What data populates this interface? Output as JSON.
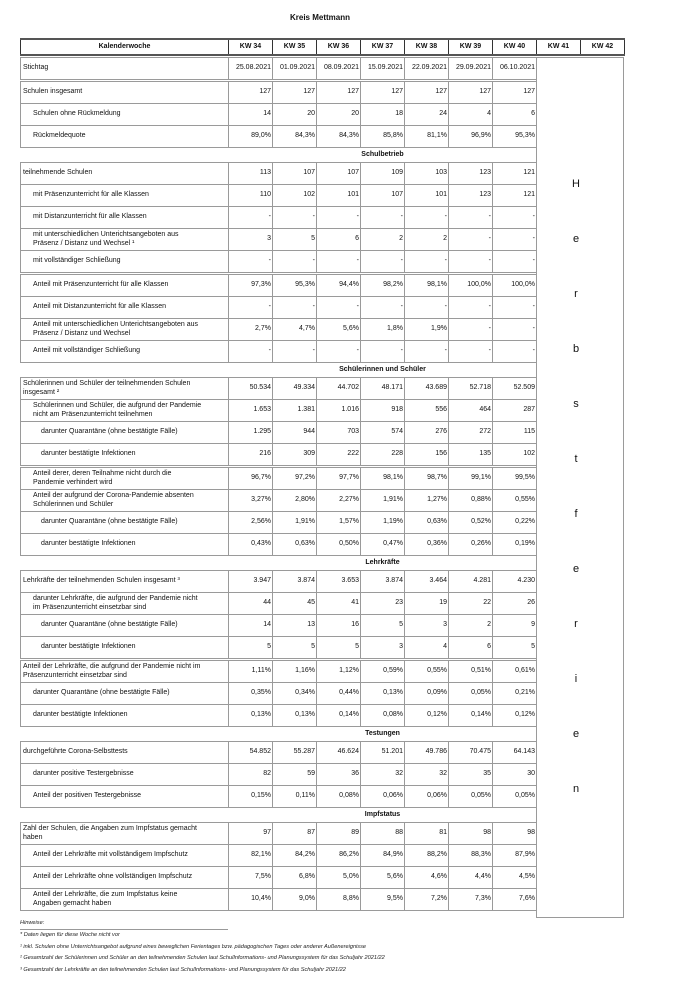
{
  "title": "Kreis Mettmann",
  "header": {
    "label": "Kalenderwoche",
    "weeks": [
      "KW 34",
      "KW 35",
      "KW 36",
      "KW 37",
      "KW 38",
      "KW 39",
      "KW 40",
      "KW 41",
      "KW 42"
    ]
  },
  "holiday_letters": [
    "H",
    "e",
    "r",
    "b",
    "s",
    "t",
    "f",
    "e",
    "r",
    "i",
    "e",
    "n"
  ],
  "rows": [
    {
      "type": "data",
      "indent": 0,
      "label": "Stichtag",
      "values": [
        "25.08.2021",
        "01.09.2021",
        "08.09.2021",
        "15.09.2021",
        "22.09.2021",
        "29.09.2021",
        "06.10.2021"
      ]
    },
    {
      "type": "data",
      "indent": 0,
      "gap": true,
      "label": "Schulen insgesamt",
      "values": [
        "127",
        "127",
        "127",
        "127",
        "127",
        "127",
        "127"
      ]
    },
    {
      "type": "data",
      "indent": 1,
      "label": "Schulen ohne Rückmeldung",
      "values": [
        "14",
        "20",
        "20",
        "18",
        "24",
        "4",
        "6"
      ]
    },
    {
      "type": "data",
      "indent": 1,
      "label": "Rückmeldequote",
      "values": [
        "89,0%",
        "84,3%",
        "84,3%",
        "85,8%",
        "81,1%",
        "96,9%",
        "95,3%"
      ]
    },
    {
      "type": "section",
      "label": "Schulbetrieb"
    },
    {
      "type": "data",
      "indent": 0,
      "label": "teilnehmende Schulen",
      "values": [
        "113",
        "107",
        "107",
        "109",
        "103",
        "123",
        "121"
      ]
    },
    {
      "type": "data",
      "indent": 1,
      "label": "mit Präsenzunterricht für alle Klassen",
      "values": [
        "110",
        "102",
        "101",
        "107",
        "101",
        "123",
        "121"
      ]
    },
    {
      "type": "data",
      "indent": 1,
      "label": "mit Distanzunterricht für alle Klassen",
      "values": [
        "-",
        "-",
        "-",
        "-",
        "-",
        "-",
        "-"
      ]
    },
    {
      "type": "data",
      "indent": 1,
      "label": "mit unterschiedlichen Unterichtsangeboten aus\nPräsenz / Distanz und Wechsel ¹",
      "values": [
        "3",
        "5",
        "6",
        "2",
        "2",
        "-",
        "-"
      ]
    },
    {
      "type": "data",
      "indent": 1,
      "label": "mit vollständiger Schließung",
      "values": [
        "-",
        "-",
        "-",
        "-",
        "-",
        "-",
        "-"
      ]
    },
    {
      "type": "data",
      "indent": 1,
      "gap": true,
      "label": "Anteil mit Präsenzunterricht für alle Klassen",
      "values": [
        "97,3%",
        "95,3%",
        "94,4%",
        "98,2%",
        "98,1%",
        "100,0%",
        "100,0%"
      ]
    },
    {
      "type": "data",
      "indent": 1,
      "label": "Anteil mit Distanzunterricht für alle Klassen",
      "values": [
        "-",
        "-",
        "-",
        "-",
        "-",
        "-",
        "-"
      ]
    },
    {
      "type": "data",
      "indent": 1,
      "label": "Anteil mit unterschiedlichen Unterichtsangeboten aus\nPräsenz / Distanz und Wechsel",
      "values": [
        "2,7%",
        "4,7%",
        "5,6%",
        "1,8%",
        "1,9%",
        "-",
        "-"
      ]
    },
    {
      "type": "data",
      "indent": 1,
      "label": "Anteil mit vollständiger Schließung",
      "values": [
        "-",
        "-",
        "-",
        "-",
        "-",
        "-",
        "-"
      ]
    },
    {
      "type": "section",
      "label": "Schülerinnen und Schüler"
    },
    {
      "type": "data",
      "indent": 0,
      "label": "Schülerinnen und Schüler der teilnehmenden Schulen\ninsgesamt ²",
      "values": [
        "50.534",
        "49.334",
        "44.702",
        "48.171",
        "43.689",
        "52.718",
        "52.509"
      ]
    },
    {
      "type": "data",
      "indent": 1,
      "label": "Schülerinnen und Schüler, die aufgrund der Pandemie\nnicht am Präsenzunterricht teilnehmen",
      "values": [
        "1.653",
        "1.381",
        "1.016",
        "918",
        "556",
        "464",
        "287"
      ]
    },
    {
      "type": "data",
      "indent": 2,
      "label": "darunter Quarantäne (ohne bestätigte Fälle)",
      "values": [
        "1.295",
        "944",
        "703",
        "574",
        "276",
        "272",
        "115"
      ]
    },
    {
      "type": "data",
      "indent": 2,
      "label": "darunter bestätigte Infektionen",
      "values": [
        "216",
        "309",
        "222",
        "228",
        "156",
        "135",
        "102"
      ]
    },
    {
      "type": "data",
      "indent": 1,
      "gap": true,
      "label": "Anteil derer, deren Teilnahme nicht durch die\nPandemie verhindert wird",
      "values": [
        "96,7%",
        "97,2%",
        "97,7%",
        "98,1%",
        "98,7%",
        "99,1%",
        "99,5%"
      ]
    },
    {
      "type": "data",
      "indent": 1,
      "label": "Anteil der aufgrund der Corona-Pandemie absenten\nSchülerinnen und Schüler",
      "values": [
        "3,27%",
        "2,80%",
        "2,27%",
        "1,91%",
        "1,27%",
        "0,88%",
        "0,55%"
      ]
    },
    {
      "type": "data",
      "indent": 2,
      "label": "darunter Quarantäne (ohne bestätigte Fälle)",
      "values": [
        "2,56%",
        "1,91%",
        "1,57%",
        "1,19%",
        "0,63%",
        "0,52%",
        "0,22%"
      ]
    },
    {
      "type": "data",
      "indent": 2,
      "label": "darunter bestätigte Infektionen",
      "values": [
        "0,43%",
        "0,63%",
        "0,50%",
        "0,47%",
        "0,36%",
        "0,26%",
        "0,19%"
      ]
    },
    {
      "type": "section",
      "label": "Lehrkräfte"
    },
    {
      "type": "data",
      "indent": 0,
      "label": "Lehrkräfte der teilnehmenden Schulen insgesamt ³",
      "values": [
        "3.947",
        "3.874",
        "3.653",
        "3.874",
        "3.464",
        "4.281",
        "4.230"
      ]
    },
    {
      "type": "data",
      "indent": 1,
      "label": "darunter Lehrkräfte, die aufgrund der Pandemie nicht\nim Präsenzunterricht einsetzbar sind",
      "values": [
        "44",
        "45",
        "41",
        "23",
        "19",
        "22",
        "26"
      ]
    },
    {
      "type": "data",
      "indent": 2,
      "label": "darunter Quarantäne (ohne bestätigte Fälle)",
      "values": [
        "14",
        "13",
        "16",
        "5",
        "3",
        "2",
        "9"
      ]
    },
    {
      "type": "data",
      "indent": 2,
      "label": "darunter bestätigte Infektionen",
      "values": [
        "5",
        "5",
        "5",
        "3",
        "4",
        "6",
        "5"
      ]
    },
    {
      "type": "data",
      "indent": 0,
      "gap": true,
      "label": "Anteil der Lehrkräfte, die aufgrund der Pandemie nicht im\nPräsenzunterricht einsetzbar sind",
      "values": [
        "1,11%",
        "1,16%",
        "1,12%",
        "0,59%",
        "0,55%",
        "0,51%",
        "0,61%"
      ]
    },
    {
      "type": "data",
      "indent": 1,
      "label": "darunter Quarantäne (ohne bestätigte Fälle)",
      "values": [
        "0,35%",
        "0,34%",
        "0,44%",
        "0,13%",
        "0,09%",
        "0,05%",
        "0,21%"
      ]
    },
    {
      "type": "data",
      "indent": 1,
      "label": "darunter bestätigte Infektionen",
      "values": [
        "0,13%",
        "0,13%",
        "0,14%",
        "0,08%",
        "0,12%",
        "0,14%",
        "0,12%"
      ]
    },
    {
      "type": "section",
      "label": "Testungen"
    },
    {
      "type": "data",
      "indent": 0,
      "label": "durchgeführte Corona-Selbsttests",
      "values": [
        "54.852",
        "55.287",
        "46.624",
        "51.201",
        "49.786",
        "70.475",
        "64.143"
      ]
    },
    {
      "type": "data",
      "indent": 1,
      "label": "darunter positive Testergebnisse",
      "values": [
        "82",
        "59",
        "36",
        "32",
        "32",
        "35",
        "30"
      ]
    },
    {
      "type": "data",
      "indent": 1,
      "label": "Anteil der positiven Testergebnisse",
      "values": [
        "0,15%",
        "0,11%",
        "0,08%",
        "0,06%",
        "0,06%",
        "0,05%",
        "0,05%"
      ]
    },
    {
      "type": "section",
      "label": "Impfstatus"
    },
    {
      "type": "data",
      "indent": 0,
      "label": "Zahl der Schulen, die Angaben zum Impfstatus gemacht\nhaben",
      "values": [
        "97",
        "87",
        "89",
        "88",
        "81",
        "98",
        "98"
      ]
    },
    {
      "type": "data",
      "indent": 1,
      "label": "Anteil der Lehrkräfte mit vollständigem Impfschutz",
      "values": [
        "82,1%",
        "84,2%",
        "86,2%",
        "84,9%",
        "88,2%",
        "88,3%",
        "87,9%"
      ]
    },
    {
      "type": "data",
      "indent": 1,
      "label": "Anteil der Lehrkräfte ohne vollständigen Impfschutz",
      "values": [
        "7,5%",
        "6,8%",
        "5,0%",
        "5,6%",
        "4,6%",
        "4,4%",
        "4,5%"
      ]
    },
    {
      "type": "data",
      "indent": 1,
      "label": "Anteil der Lehrkräfte, die zum Impfstatus keine\nAngaben gemacht haben",
      "values": [
        "10,4%",
        "9,0%",
        "8,8%",
        "9,5%",
        "7,2%",
        "7,3%",
        "7,6%"
      ]
    }
  ],
  "notes": {
    "heading": "Hinweise:",
    "items": [
      "* Daten liegen für diese Woche nicht vor",
      "¹ inkl. Schulen ohne Unterrichtsangebot aufgrund eines beweglichen Ferientages bzw. pädagogischen Tages oder anderer Außenereignisse",
      "² Gesamtzahl der Schülerinnen und Schüler an den teilnehmenden Schulen laut SchulInformations- und Planungssystem für das Schuljahr 2021/22",
      "³ Gesamtzahl der Lehrkräfte an den teilnehmenden Schulen laut SchulInformations- und Planungssystem für das Schuljahr 2021/22"
    ]
  }
}
